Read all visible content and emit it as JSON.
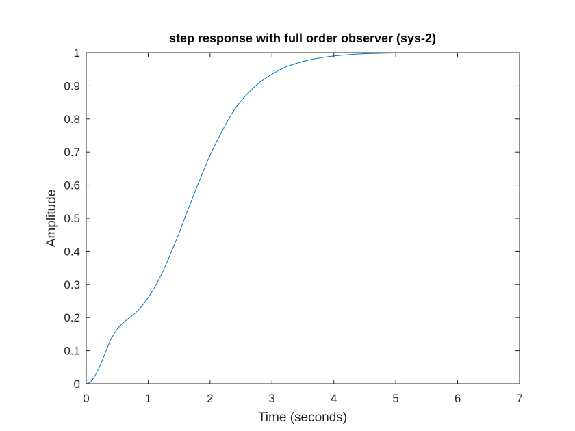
{
  "chart_data": {
    "type": "line",
    "title": "step response with full order observer (sys-2)",
    "xlabel": "Time (seconds)",
    "ylabel": "Amplitude",
    "xlim": [
      0,
      7
    ],
    "ylim": [
      0,
      1
    ],
    "xticks": [
      "0",
      "1",
      "2",
      "3",
      "4",
      "5",
      "6",
      "7"
    ],
    "yticks": [
      "0",
      "0.1",
      "0.2",
      "0.3",
      "0.4",
      "0.5",
      "0.6",
      "0.7",
      "0.8",
      "0.9",
      "1"
    ],
    "grid": false,
    "series": [
      {
        "color": "#0072BD",
        "x": [
          0,
          0.05,
          0.1,
          0.2,
          0.3,
          0.4,
          0.5,
          0.6,
          0.7,
          0.8,
          0.9,
          1.0,
          1.1,
          1.2,
          1.3,
          1.4,
          1.5,
          1.6,
          1.8,
          2.0,
          2.2,
          2.4,
          2.6,
          2.8,
          3.0,
          3.2,
          3.4,
          3.6,
          3.8,
          4.0,
          4.25,
          4.5,
          4.75,
          5.0,
          5.5,
          6.0,
          6.5,
          7.0
        ],
        "y": [
          0,
          0.003,
          0.012,
          0.045,
          0.09,
          0.135,
          0.165,
          0.185,
          0.2,
          0.215,
          0.235,
          0.26,
          0.29,
          0.325,
          0.365,
          0.41,
          0.455,
          0.505,
          0.6,
          0.69,
          0.765,
          0.83,
          0.875,
          0.91,
          0.935,
          0.955,
          0.968,
          0.978,
          0.985,
          0.99,
          0.994,
          0.997,
          0.998,
          0.999,
          1.0,
          1.0,
          1.0,
          1.0
        ]
      }
    ]
  }
}
